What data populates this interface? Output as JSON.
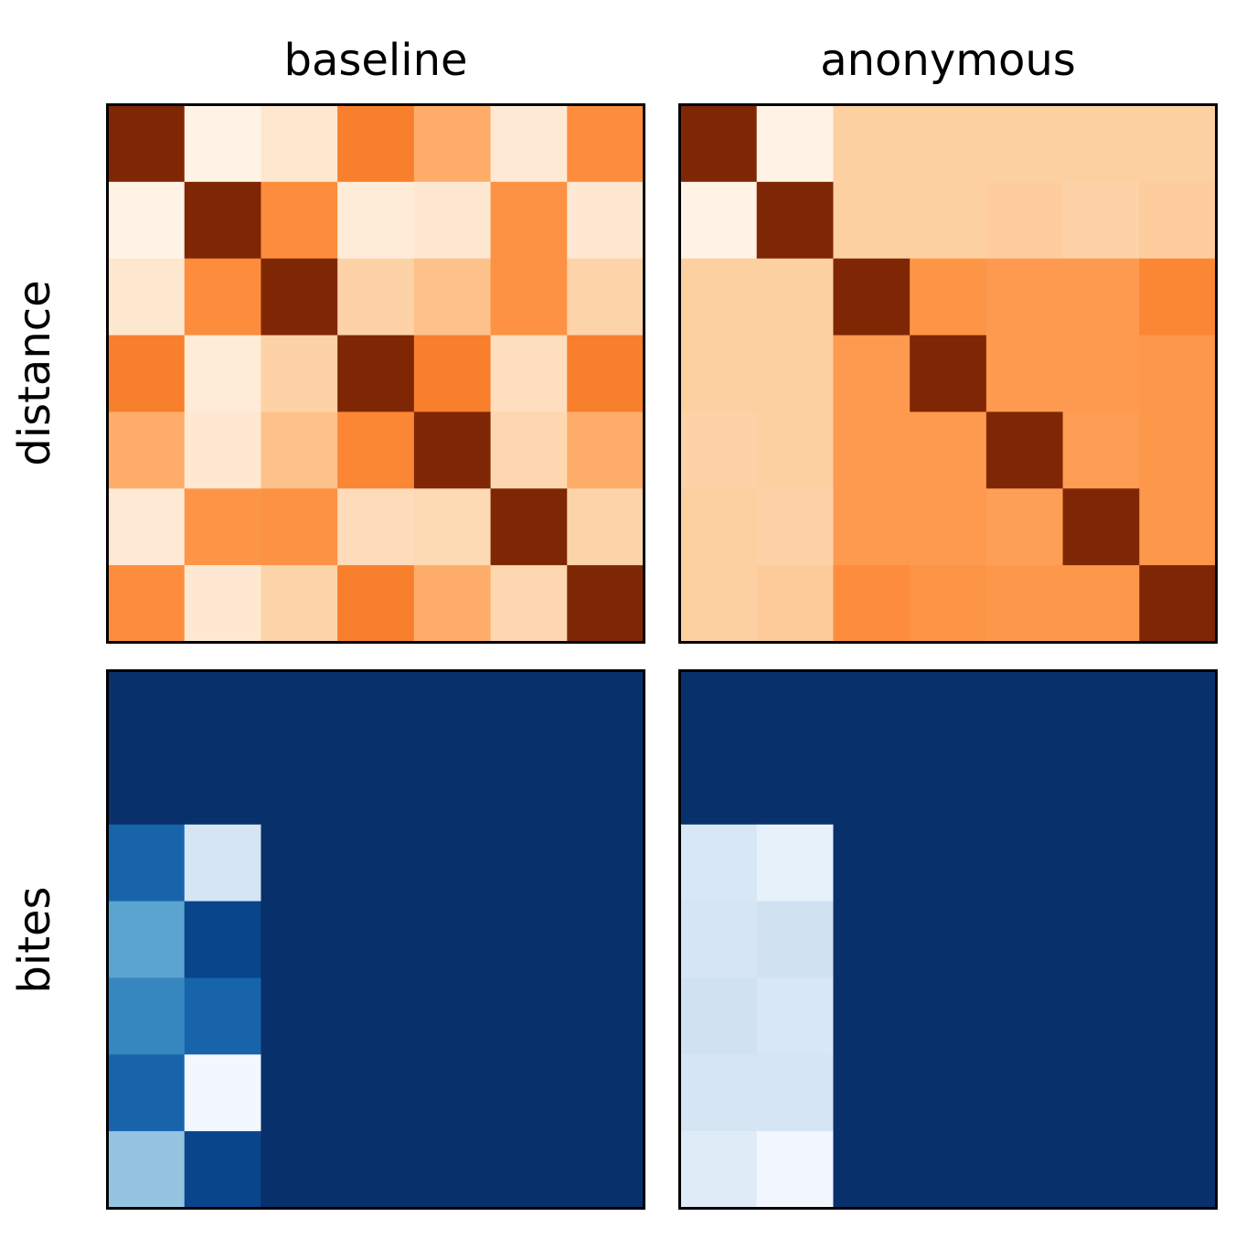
{
  "chart_data": {
    "type": "heatmap",
    "columns": [
      "baseline",
      "anonymous"
    ],
    "rows": [
      "distance",
      "bites"
    ],
    "panels": [
      {
        "row": "distance",
        "column": "baseline",
        "colormap": "Oranges",
        "vmin": 0.0,
        "vmax": 1.0,
        "values": [
          [
            1.0,
            0.02,
            0.12,
            0.55,
            0.38,
            0.1,
            0.5
          ],
          [
            0.02,
            1.0,
            0.5,
            0.08,
            0.11,
            0.48,
            0.11
          ],
          [
            0.12,
            0.5,
            1.0,
            0.24,
            0.3,
            0.48,
            0.23
          ],
          [
            0.55,
            0.08,
            0.24,
            1.0,
            0.55,
            0.17,
            0.55
          ],
          [
            0.38,
            0.11,
            0.3,
            0.52,
            1.0,
            0.21,
            0.38
          ],
          [
            0.1,
            0.47,
            0.48,
            0.18,
            0.2,
            1.0,
            0.23
          ],
          [
            0.5,
            0.11,
            0.23,
            0.55,
            0.38,
            0.21,
            1.0
          ]
        ]
      },
      {
        "row": "distance",
        "column": "anonymous",
        "colormap": "Oranges",
        "vmin": 0.0,
        "vmax": 1.0,
        "values": [
          [
            1.0,
            0.02,
            0.25,
            0.25,
            0.25,
            0.25,
            0.25
          ],
          [
            0.02,
            1.0,
            0.25,
            0.25,
            0.26,
            0.24,
            0.26
          ],
          [
            0.25,
            0.25,
            1.0,
            0.47,
            0.45,
            0.45,
            0.52
          ],
          [
            0.25,
            0.25,
            0.45,
            1.0,
            0.45,
            0.45,
            0.46
          ],
          [
            0.24,
            0.25,
            0.45,
            0.45,
            1.0,
            0.44,
            0.46
          ],
          [
            0.25,
            0.24,
            0.45,
            0.45,
            0.43,
            1.0,
            0.46
          ],
          [
            0.25,
            0.27,
            0.5,
            0.47,
            0.46,
            0.46,
            1.0
          ]
        ]
      },
      {
        "row": "bites",
        "column": "baseline",
        "colormap": "Blues",
        "vmin": 0.0,
        "vmax": 1.0,
        "values": [
          [
            1.0,
            1.0,
            1.0,
            1.0,
            1.0,
            1.0,
            1.0
          ],
          [
            1.0,
            1.0,
            1.0,
            1.0,
            1.0,
            1.0,
            1.0
          ],
          [
            0.8,
            0.17,
            1.0,
            1.0,
            1.0,
            1.0,
            1.0
          ],
          [
            0.55,
            0.92,
            1.0,
            1.0,
            1.0,
            1.0,
            1.0
          ],
          [
            0.67,
            0.8,
            1.0,
            1.0,
            1.0,
            1.0,
            1.0
          ],
          [
            0.8,
            0.02,
            1.0,
            1.0,
            1.0,
            1.0,
            1.0
          ],
          [
            0.4,
            0.92,
            1.0,
            1.0,
            1.0,
            1.0,
            1.0
          ]
        ]
      },
      {
        "row": "bites",
        "column": "anonymous",
        "colormap": "Blues",
        "vmin": 0.0,
        "vmax": 1.0,
        "values": [
          [
            1.0,
            1.0,
            1.0,
            1.0,
            1.0,
            1.0,
            1.0
          ],
          [
            1.0,
            1.0,
            1.0,
            1.0,
            1.0,
            1.0,
            1.0
          ],
          [
            0.16,
            0.08,
            1.0,
            1.0,
            1.0,
            1.0,
            1.0
          ],
          [
            0.17,
            0.2,
            1.0,
            1.0,
            1.0,
            1.0,
            1.0
          ],
          [
            0.2,
            0.16,
            1.0,
            1.0,
            1.0,
            1.0,
            1.0
          ],
          [
            0.17,
            0.17,
            1.0,
            1.0,
            1.0,
            1.0,
            1.0
          ],
          [
            0.12,
            0.03,
            1.0,
            1.0,
            1.0,
            1.0,
            1.0
          ]
        ]
      }
    ],
    "grid": false,
    "legend": "none",
    "ticks": "none"
  }
}
